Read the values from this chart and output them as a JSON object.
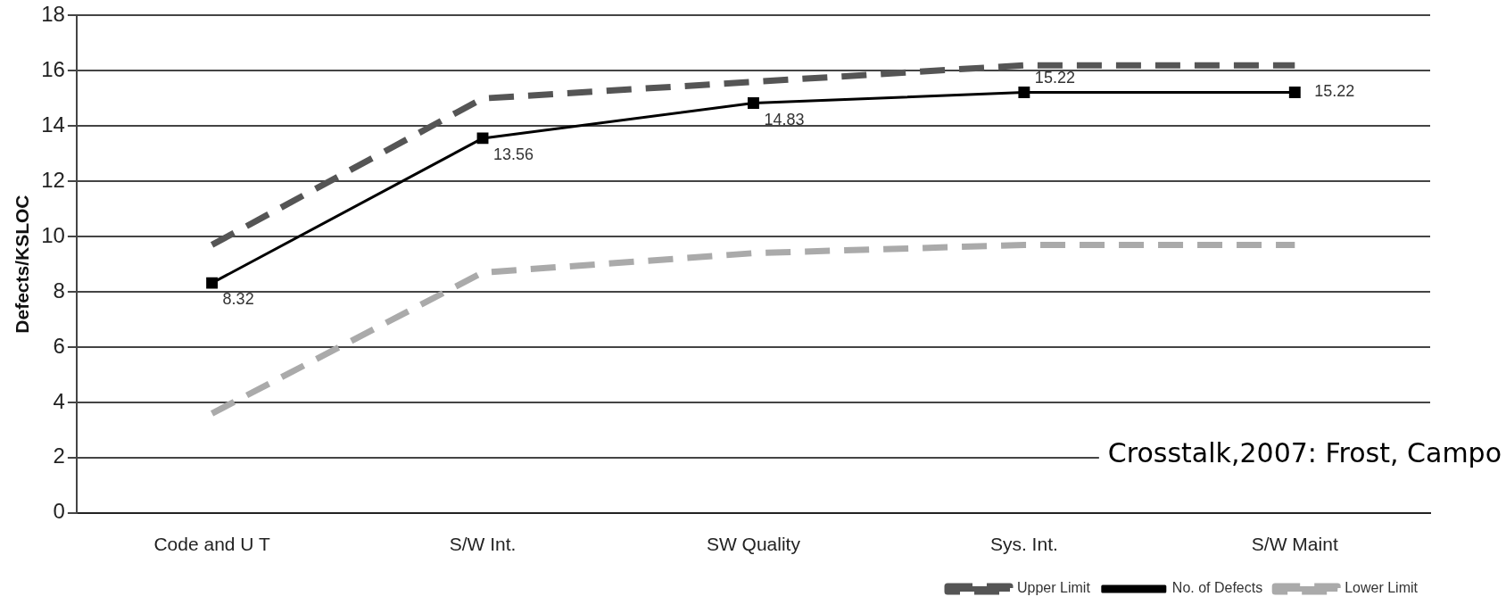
{
  "chart_data": {
    "type": "line",
    "ylabel": "Defects/KSLOC",
    "categories": [
      "Code and U T",
      "S/W Int.",
      "SW Quality",
      "Sys. Int.",
      "S/W Maint"
    ],
    "series": [
      {
        "name": "Upper Limit",
        "color": "#555555",
        "line_style": "dashed",
        "marker": "none",
        "values": [
          9.7,
          15.0,
          15.6,
          16.2,
          16.2
        ]
      },
      {
        "name": "No. of Defects",
        "color": "#000000",
        "line_style": "solid",
        "marker": "square",
        "data_labels": true,
        "values": [
          8.32,
          13.56,
          14.83,
          15.22,
          15.22
        ]
      },
      {
        "name": "Lower Limit",
        "color": "#aaaaaa",
        "line_style": "dashed",
        "marker": "none",
        "values": [
          3.6,
          8.7,
          9.4,
          9.7,
          9.7
        ]
      }
    ],
    "ylim": [
      0,
      18
    ],
    "yticks": [
      0,
      2,
      4,
      6,
      8,
      10,
      12,
      14,
      16,
      18
    ],
    "grid": "y",
    "legend": "bottom right",
    "annotations": [
      "Crosstalk,2007: Frost, Campo"
    ]
  }
}
